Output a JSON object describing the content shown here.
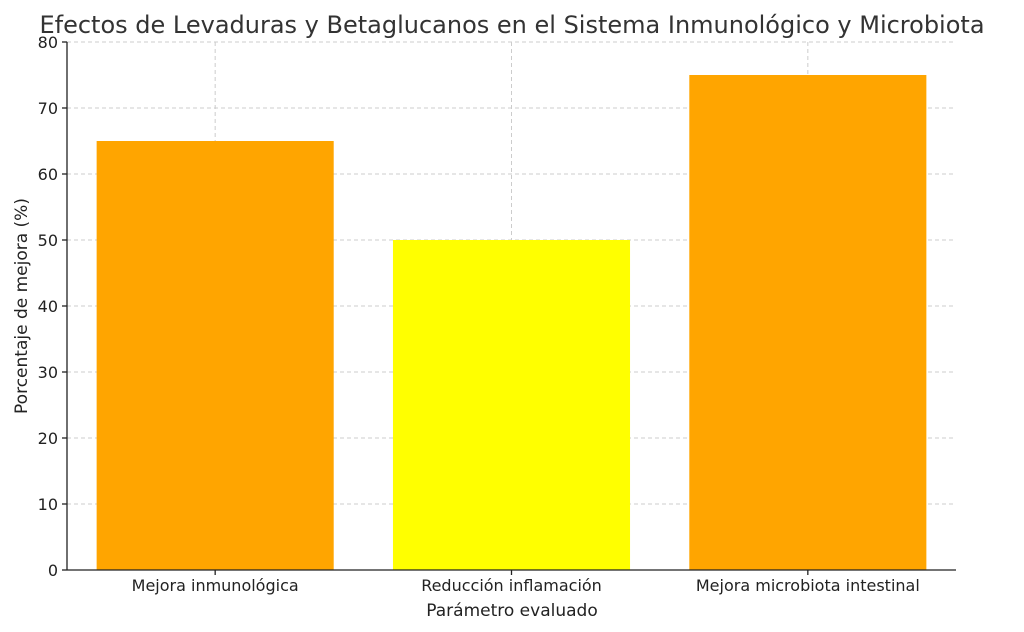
{
  "chart_data": {
    "type": "bar",
    "title": "Efectos de Levaduras y Betaglucanos en el Sistema Inmunológico y Microbiota",
    "xlabel": "Parámetro evaluado",
    "ylabel": "Porcentaje de mejora (%)",
    "categories": [
      "Mejora inmunológica",
      "Reducción inflamación",
      "Mejora microbiota intestinal"
    ],
    "values": [
      65,
      50,
      75
    ],
    "colors": [
      "#FFA500",
      "#FFFF00",
      "#FFA500"
    ],
    "ylim": [
      0,
      80
    ],
    "yticks": [
      0,
      10,
      20,
      30,
      40,
      50,
      60,
      70,
      80
    ],
    "grid": true
  }
}
